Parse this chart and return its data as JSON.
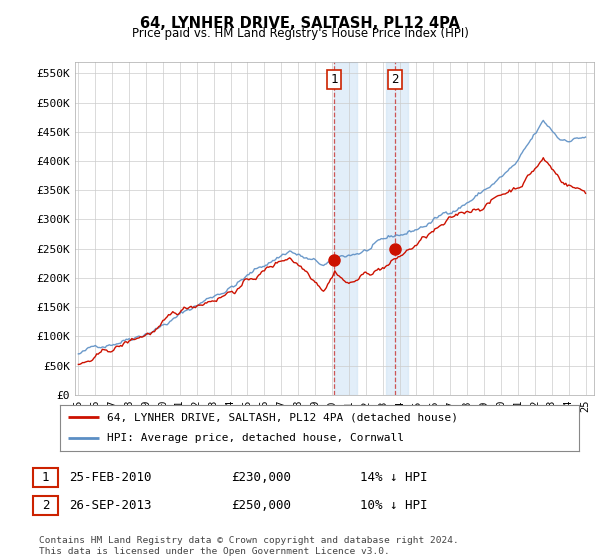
{
  "title": "64, LYNHER DRIVE, SALTASH, PL12 4PA",
  "subtitle": "Price paid vs. HM Land Registry's House Price Index (HPI)",
  "ylabel_ticks": [
    "£0",
    "£50K",
    "£100K",
    "£150K",
    "£200K",
    "£250K",
    "£300K",
    "£350K",
    "£400K",
    "£450K",
    "£500K",
    "£550K"
  ],
  "ytick_values": [
    0,
    50000,
    100000,
    150000,
    200000,
    250000,
    300000,
    350000,
    400000,
    450000,
    500000,
    550000
  ],
  "ylim": [
    0,
    570000
  ],
  "legend_line1": "64, LYNHER DRIVE, SALTASH, PL12 4PA (detached house)",
  "legend_line2": "HPI: Average price, detached house, Cornwall",
  "transaction1_date": "25-FEB-2010",
  "transaction1_price": "£230,000",
  "transaction1_hpi": "14% ↓ HPI",
  "transaction2_date": "26-SEP-2013",
  "transaction2_price": "£250,000",
  "transaction2_hpi": "10% ↓ HPI",
  "footer": "Contains HM Land Registry data © Crown copyright and database right 2024.\nThis data is licensed under the Open Government Licence v3.0.",
  "hpi_color": "#5b8ec4",
  "price_color": "#cc1100",
  "background_color": "#ffffff",
  "grid_color": "#cccccc",
  "transaction1_x": 2010.12,
  "transaction2_x": 2013.75,
  "transaction1_y": 230000,
  "transaction2_y": 250000,
  "shade1_x_start": 2010.12,
  "shade1_x_end": 2011.5,
  "shade2_x_start": 2013.2,
  "shade2_x_end": 2014.5,
  "xmin": 1994.8,
  "xmax": 2025.5
}
